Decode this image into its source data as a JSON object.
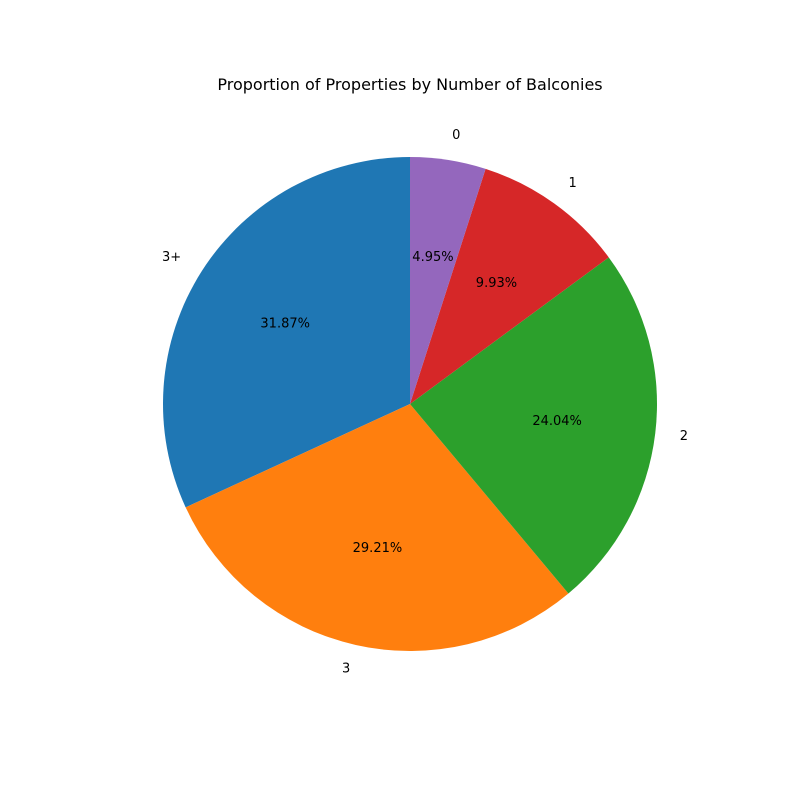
{
  "chart_data": {
    "type": "pie",
    "title": "Proportion of Properties by Number of Balconies",
    "start_angle_deg": 90,
    "direction": "counterclockwise",
    "slices": [
      {
        "label": "3+",
        "value": 31.87,
        "display": "31.87%",
        "color": "#1f77b4"
      },
      {
        "label": "3",
        "value": 29.21,
        "display": "29.21%",
        "color": "#ff7f0e"
      },
      {
        "label": "2",
        "value": 24.04,
        "display": "24.04%",
        "color": "#2ca02c"
      },
      {
        "label": "1",
        "value": 9.93,
        "display": "9.93%",
        "color": "#d62728"
      },
      {
        "label": "0",
        "value": 4.95,
        "display": "4.95%",
        "color": "#9467bd"
      }
    ]
  }
}
